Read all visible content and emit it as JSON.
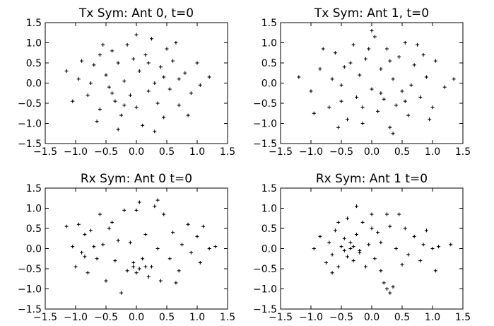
{
  "chart_data": [
    {
      "type": "scatter",
      "title": "Tx Sym: Ant 0, t=0",
      "xlim": [
        -1.5,
        1.5
      ],
      "ylim": [
        -1.5,
        1.5
      ],
      "xticks": [
        "−1.5",
        "−1.0",
        "−0.5",
        "0.0",
        "0.5",
        "1.0",
        "1.5"
      ],
      "yticks": [
        "1.5",
        "1.0",
        "0.5",
        "0.0",
        "−0.5",
        "−1.0",
        "−1.5"
      ],
      "marker": "+",
      "marker_color": "#000000",
      "grid": false,
      "points": [
        [
          -0.95,
          0.1
        ],
        [
          -0.8,
          -0.3
        ],
        [
          -0.7,
          0.45
        ],
        [
          -0.6,
          -0.65
        ],
        [
          -0.5,
          0.2
        ],
        [
          -0.45,
          -0.1
        ],
        [
          -0.4,
          0.8
        ],
        [
          -0.35,
          -0.45
        ],
        [
          -0.3,
          0.5
        ],
        [
          -0.25,
          -0.8
        ],
        [
          -0.2,
          0.05
        ],
        [
          -0.15,
          0.95
        ],
        [
          -0.1,
          -0.3
        ],
        [
          -0.05,
          0.6
        ],
        [
          0.0,
          -0.6
        ],
        [
          0.05,
          0.3
        ],
        [
          0.1,
          -1.05
        ],
        [
          0.15,
          0.7
        ],
        [
          0.2,
          -0.2
        ],
        [
          0.25,
          1.1
        ],
        [
          0.3,
          0.0
        ],
        [
          0.35,
          -0.5
        ],
        [
          0.4,
          0.4
        ],
        [
          0.45,
          -0.85
        ],
        [
          0.5,
          0.85
        ],
        [
          0.55,
          -0.15
        ],
        [
          0.6,
          0.55
        ],
        [
          0.7,
          -0.55
        ],
        [
          0.8,
          0.25
        ],
        [
          0.9,
          -0.25
        ],
        [
          1.0,
          0.5
        ],
        [
          1.05,
          -0.05
        ],
        [
          -1.05,
          -0.45
        ],
        [
          -0.9,
          0.55
        ],
        [
          -0.65,
          -0.95
        ],
        [
          -0.55,
          0.95
        ],
        [
          -0.3,
          -1.15
        ],
        [
          0.0,
          1.2
        ],
        [
          0.3,
          -1.2
        ],
        [
          0.65,
          1.0
        ],
        [
          0.85,
          -0.8
        ],
        [
          -1.15,
          0.3
        ],
        [
          1.2,
          0.15
        ],
        [
          -0.75,
          0.0
        ],
        [
          0.7,
          0.1
        ],
        [
          -0.2,
          -0.55
        ],
        [
          0.45,
          0.15
        ],
        [
          -0.6,
          0.7
        ],
        [
          0.2,
          0.5
        ],
        [
          -0.4,
          -0.25
        ]
      ]
    },
    {
      "type": "scatter",
      "title": "Tx Sym: Ant 1, t=0",
      "xlim": [
        -1.5,
        1.5
      ],
      "ylim": [
        -1.5,
        1.5
      ],
      "xticks": [
        "−1.5",
        "−1.0",
        "−0.5",
        "0.0",
        "0.5",
        "1.0",
        "1.5"
      ],
      "yticks": [
        "1.5",
        "1.0",
        "0.5",
        "0.0",
        "−0.5",
        "−1.0",
        "−1.5"
      ],
      "marker": "+",
      "marker_color": "#000000",
      "grid": false,
      "points": [
        [
          -1.0,
          -0.2
        ],
        [
          -0.85,
          0.35
        ],
        [
          -0.7,
          -0.6
        ],
        [
          -0.6,
          0.75
        ],
        [
          -0.5,
          -0.05
        ],
        [
          -0.45,
          0.4
        ],
        [
          -0.4,
          -0.9
        ],
        [
          -0.3,
          0.95
        ],
        [
          -0.25,
          -0.35
        ],
        [
          -0.2,
          0.2
        ],
        [
          -0.15,
          -1.0
        ],
        [
          -0.1,
          0.6
        ],
        [
          0.0,
          -0.15
        ],
        [
          0.05,
          1.15
        ],
        [
          0.1,
          -0.7
        ],
        [
          0.15,
          0.35
        ],
        [
          0.2,
          -0.4
        ],
        [
          0.25,
          0.85
        ],
        [
          0.3,
          -1.1
        ],
        [
          0.35,
          0.1
        ],
        [
          0.4,
          -0.55
        ],
        [
          0.45,
          0.65
        ],
        [
          0.5,
          -0.2
        ],
        [
          0.55,
          1.0
        ],
        [
          0.6,
          -0.8
        ],
        [
          0.7,
          0.45
        ],
        [
          0.8,
          -0.35
        ],
        [
          0.9,
          0.15
        ],
        [
          1.0,
          -0.6
        ],
        [
          1.05,
          0.55
        ],
        [
          -1.2,
          0.15
        ],
        [
          1.2,
          -0.1
        ],
        [
          1.35,
          0.1
        ],
        [
          -0.95,
          -0.75
        ],
        [
          -0.8,
          0.85
        ],
        [
          -0.55,
          -1.1
        ],
        [
          0.0,
          1.3
        ],
        [
          0.35,
          -1.25
        ],
        [
          0.75,
          0.95
        ],
        [
          0.95,
          -0.9
        ],
        [
          -0.65,
          0.1
        ],
        [
          0.65,
          -0.05
        ],
        [
          -0.35,
          0.5
        ],
        [
          0.15,
          -0.25
        ],
        [
          -0.05,
          0.85
        ],
        [
          0.3,
          0.55
        ],
        [
          -0.5,
          -0.45
        ],
        [
          0.55,
          -0.45
        ],
        [
          -0.15,
          -0.6
        ],
        [
          0.85,
          0.7
        ]
      ]
    },
    {
      "type": "scatter",
      "title": "Rx Sym: Ant 0 t=0",
      "xlim": [
        -1.5,
        1.5
      ],
      "ylim": [
        -1.5,
        1.5
      ],
      "xticks": [
        "−1.5",
        "−1.0",
        "−0.5",
        "0.0",
        "0.5",
        "1.0",
        "1.5"
      ],
      "yticks": [
        "1.5",
        "1.0",
        "0.5",
        "0.0",
        "−0.5",
        "−1.0",
        "−1.5"
      ],
      "marker": "+",
      "marker_color": "#000000",
      "grid": false,
      "points": [
        [
          -1.15,
          0.55
        ],
        [
          -1.05,
          0.05
        ],
        [
          -1.0,
          -0.45
        ],
        [
          -0.95,
          0.6
        ],
        [
          -0.9,
          -0.1
        ],
        [
          -0.85,
          0.35
        ],
        [
          -0.8,
          -0.6
        ],
        [
          -0.75,
          0.45
        ],
        [
          -0.65,
          -0.25
        ],
        [
          -0.6,
          0.85
        ],
        [
          -0.55,
          0.1
        ],
        [
          -0.5,
          -0.8
        ],
        [
          -0.45,
          0.5
        ],
        [
          -0.35,
          -0.3
        ],
        [
          -0.3,
          0.2
        ],
        [
          -0.2,
          0.95
        ],
        [
          -0.15,
          -0.55
        ],
        [
          -0.1,
          0.15
        ],
        [
          -0.05,
          -0.35
        ],
        [
          0.0,
          0.95
        ],
        [
          0.05,
          -0.5
        ],
        [
          0.1,
          -0.25
        ],
        [
          0.15,
          0.35
        ],
        [
          0.2,
          -0.7
        ],
        [
          0.25,
          -0.45
        ],
        [
          0.3,
          1.05
        ],
        [
          0.35,
          0.0
        ],
        [
          0.4,
          -0.8
        ],
        [
          0.45,
          0.85
        ],
        [
          0.55,
          -0.25
        ],
        [
          0.6,
          0.4
        ],
        [
          0.7,
          -0.55
        ],
        [
          0.75,
          0.1
        ],
        [
          0.85,
          0.6
        ],
        [
          0.9,
          -0.1
        ],
        [
          1.0,
          0.3
        ],
        [
          1.05,
          -0.35
        ],
        [
          1.1,
          0.55
        ],
        [
          1.2,
          0.0
        ],
        [
          1.3,
          0.05
        ],
        [
          -0.25,
          -1.1
        ],
        [
          -0.7,
          0.05
        ],
        [
          -0.4,
          0.65
        ],
        [
          0.05,
          1.15
        ],
        [
          0.35,
          1.2
        ],
        [
          -0.05,
          -0.45
        ],
        [
          0.15,
          -0.45
        ],
        [
          0.0,
          -0.6
        ],
        [
          -0.85,
          -0.2
        ],
        [
          0.65,
          -0.85
        ]
      ]
    },
    {
      "type": "scatter",
      "title": "Rx Sym: Ant 1 t=0",
      "xlim": [
        -1.5,
        1.5
      ],
      "ylim": [
        -1.5,
        1.5
      ],
      "xticks": [
        "−1.5",
        "−1.0",
        "−0.5",
        "0.0",
        "0.5",
        "1.0",
        "1.5"
      ],
      "yticks": [
        "1.5",
        "1.0",
        "0.5",
        "0.0",
        "−0.5",
        "−1.0",
        "−1.5"
      ],
      "marker": "+",
      "marker_color": "#000000",
      "grid": false,
      "points": [
        [
          -0.95,
          0.0
        ],
        [
          -0.85,
          0.3
        ],
        [
          -0.75,
          -0.35
        ],
        [
          -0.7,
          0.15
        ],
        [
          -0.65,
          -0.15
        ],
        [
          -0.6,
          0.45
        ],
        [
          -0.55,
          -0.45
        ],
        [
          -0.5,
          0.05
        ],
        [
          -0.45,
          0.25
        ],
        [
          -0.4,
          -0.2
        ],
        [
          -0.35,
          0.0
        ],
        [
          -0.35,
          0.15
        ],
        [
          -0.3,
          -0.3
        ],
        [
          -0.25,
          0.35
        ],
        [
          -0.2,
          -0.1
        ],
        [
          -0.15,
          0.65
        ],
        [
          -0.1,
          -0.45
        ],
        [
          -0.05,
          0.1
        ],
        [
          0.0,
          0.85
        ],
        [
          0.05,
          -0.25
        ],
        [
          0.1,
          0.4
        ],
        [
          0.15,
          0.15
        ],
        [
          0.2,
          -0.85
        ],
        [
          0.25,
          -1.0
        ],
        [
          0.3,
          -1.1
        ],
        [
          0.35,
          -0.95
        ],
        [
          0.3,
          0.55
        ],
        [
          0.4,
          0.0
        ],
        [
          0.45,
          0.85
        ],
        [
          0.5,
          -0.4
        ],
        [
          0.55,
          0.5
        ],
        [
          0.6,
          -0.15
        ],
        [
          0.7,
          0.3
        ],
        [
          0.8,
          -0.3
        ],
        [
          0.85,
          0.1
        ],
        [
          0.9,
          0.45
        ],
        [
          1.0,
          0.0
        ],
        [
          1.05,
          -0.55
        ],
        [
          1.1,
          0.05
        ],
        [
          1.3,
          0.1
        ],
        [
          -0.4,
          0.75
        ],
        [
          -0.25,
          1.05
        ],
        [
          -0.55,
          0.65
        ],
        [
          0.0,
          0.5
        ],
        [
          0.25,
          0.85
        ],
        [
          -0.2,
          -0.05
        ],
        [
          -0.3,
          0.05
        ],
        [
          -0.45,
          -0.05
        ],
        [
          0.15,
          -0.55
        ],
        [
          -0.65,
          -0.6
        ]
      ]
    }
  ]
}
